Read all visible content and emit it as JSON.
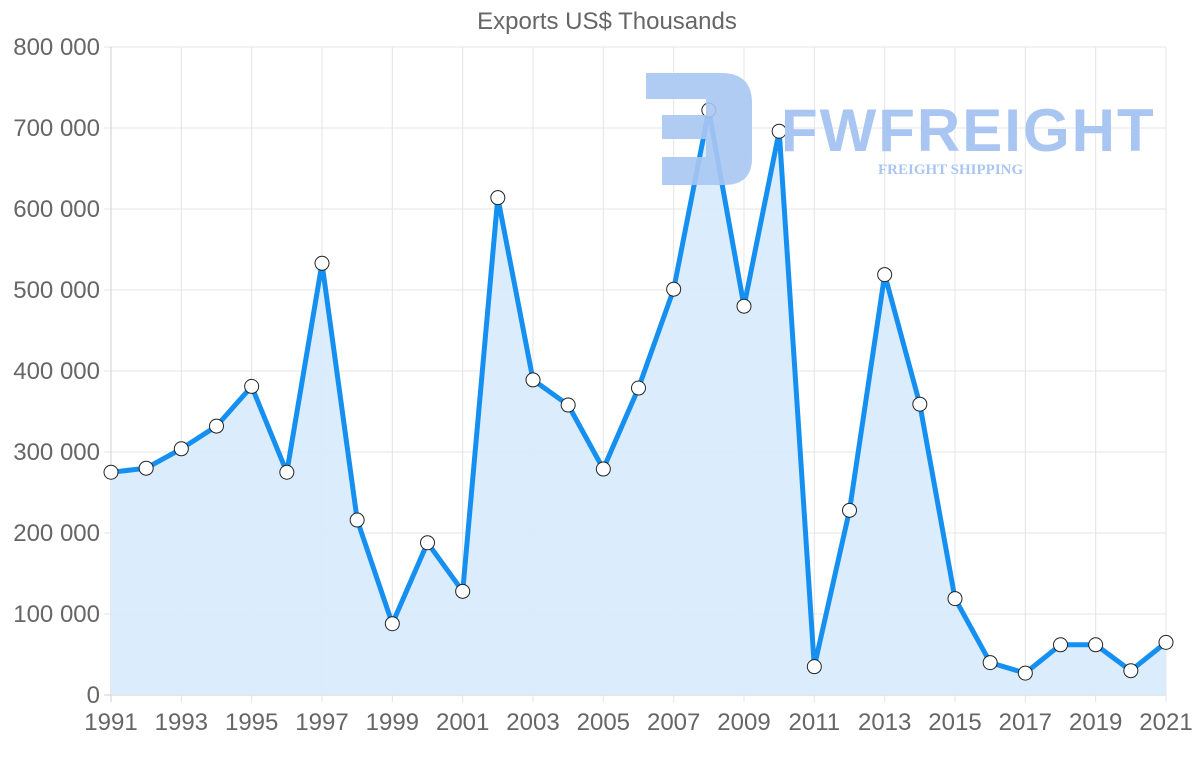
{
  "chart_data": {
    "type": "line",
    "title": "Exports US$ Thousands",
    "xlabel": "",
    "ylabel": "",
    "ylim": [
      0,
      800000
    ],
    "y_ticks": [
      0,
      100000,
      200000,
      300000,
      400000,
      500000,
      600000,
      700000,
      800000
    ],
    "y_tick_labels": [
      "0",
      "100 000",
      "200 000",
      "300 000",
      "400 000",
      "500 000",
      "600 000",
      "700 000",
      "800 000"
    ],
    "x_tick_labels": [
      "1991",
      "1993",
      "1995",
      "1997",
      "1999",
      "2001",
      "2003",
      "2005",
      "2007",
      "2009",
      "2011",
      "2013",
      "2015",
      "2017",
      "2019",
      "2021"
    ],
    "grid": true,
    "legend": null,
    "fill": true,
    "x": [
      1991,
      1992,
      1993,
      1994,
      1995,
      1996,
      1997,
      1998,
      1999,
      2000,
      2001,
      2002,
      2003,
      2004,
      2005,
      2006,
      2007,
      2008,
      2009,
      2010,
      2011,
      2012,
      2013,
      2014,
      2015,
      2016,
      2017,
      2018,
      2019,
      2020,
      2021
    ],
    "series": [
      {
        "name": "Exports US$ Thousands",
        "color": "#1690f0",
        "fill_color": "#d9ecfc",
        "values": [
          275000,
          280000,
          304000,
          332000,
          381000,
          275000,
          533000,
          216000,
          88000,
          188000,
          128000,
          614000,
          389000,
          358000,
          279000,
          379000,
          501000,
          722000,
          480000,
          696000,
          35000,
          228000,
          519000,
          359000,
          119000,
          40000,
          27000,
          62000,
          62000,
          30000,
          65000
        ]
      }
    ]
  },
  "watermark": {
    "brand": "FWFREIGHT",
    "tagline": "FREIGHT SHIPPING",
    "color": "#a9c6f2"
  }
}
